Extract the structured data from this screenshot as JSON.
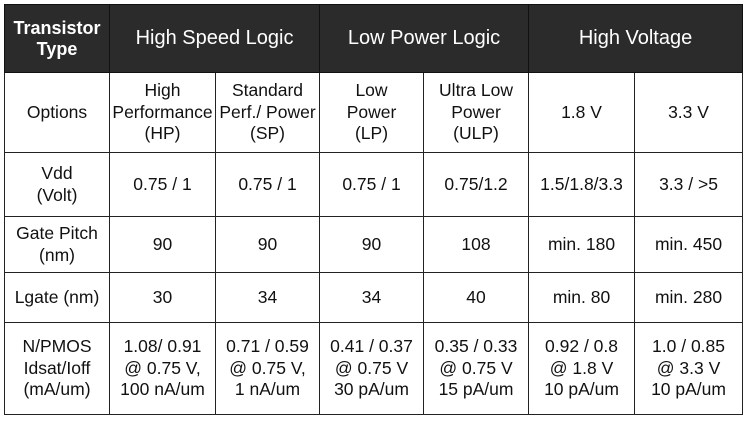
{
  "header": {
    "first": "Transistor\nType",
    "groups": [
      "High Speed Logic",
      "Low Power Logic",
      "High Voltage"
    ]
  },
  "rows": {
    "options": {
      "label": "Options",
      "cells": [
        "High\nPerformance\n(HP)",
        "Standard\nPerf./ Power\n(SP)",
        "Low\nPower\n(LP)",
        "Ultra Low\nPower\n(ULP)",
        "1.8 V",
        "3.3 V"
      ]
    },
    "vdd": {
      "label": "Vdd\n(Volt)",
      "cells": [
        "0.75 / 1",
        "0.75 / 1",
        "0.75 / 1",
        "0.75/1.2",
        "1.5/1.8/3.3",
        "3.3 / >5"
      ]
    },
    "gate_pitch": {
      "label": "Gate Pitch\n(nm)",
      "cells": [
        "90",
        "90",
        "90",
        "108",
        "min. 180",
        "min. 450"
      ]
    },
    "lgate": {
      "label": "Lgate (nm)",
      "cells": [
        "30",
        "34",
        "34",
        "40",
        "min. 80",
        "min. 280"
      ]
    },
    "idsat": {
      "label": "N/PMOS\nIdsat/Ioff\n(mA/um)",
      "cells": [
        "1.08/ 0.91\n@ 0.75 V,\n100 nA/um",
        "0.71 / 0.59\n@ 0.75 V,\n1 nA/um",
        "0.41 / 0.37\n@ 0.75 V\n30 pA/um",
        "0.35 / 0.33\n@ 0.75 V\n15 pA/um",
        "0.92 / 0.8\n@ 1.8 V\n10 pA/um",
        "1.0 / 0.85\n@ 3.3 V\n10 pA/um"
      ]
    }
  }
}
